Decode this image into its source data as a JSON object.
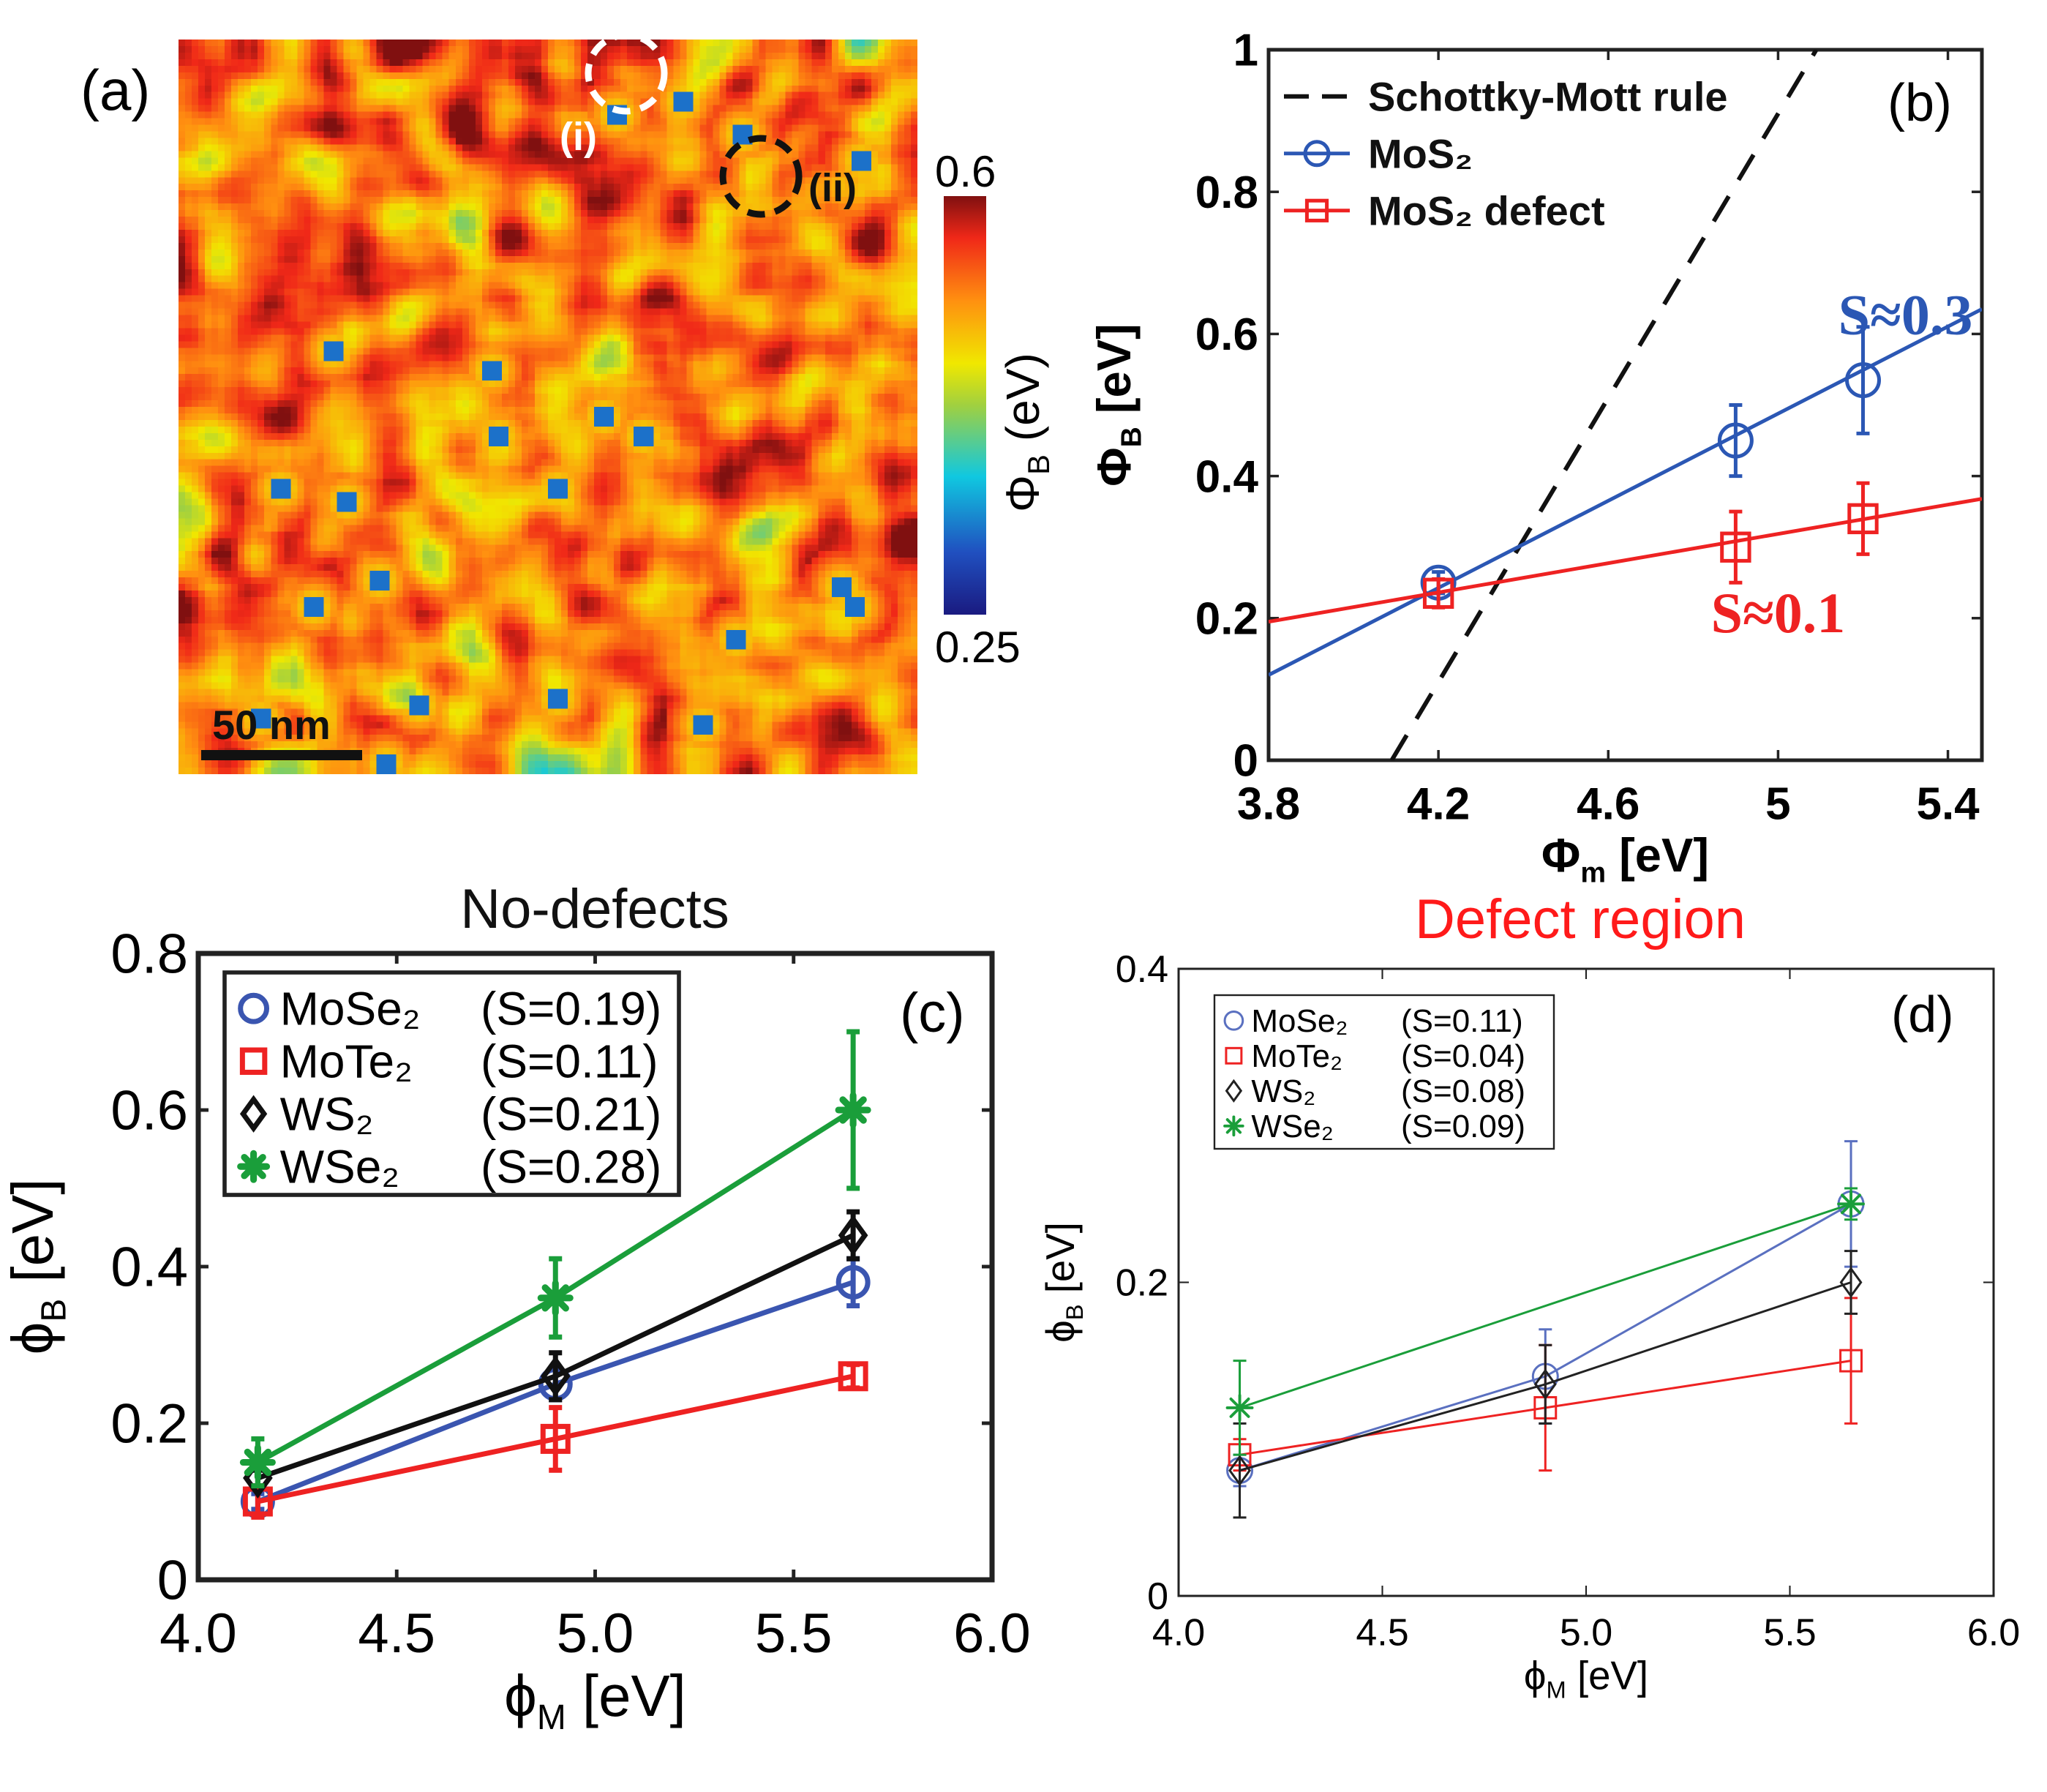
{
  "panel_a": {
    "label": "(a)",
    "scale_bar": "50 nm",
    "marker_i": "(i)",
    "marker_ii": "(ii)",
    "colorbar": {
      "max": "0.6",
      "min": "0.25",
      "label_symbol": "Φ",
      "label_sub": "B",
      "label_unit": " (eV)"
    },
    "colormap": "jet"
  },
  "chart_data": [
    {
      "id": "b",
      "type": "line",
      "panel_label": "(b)",
      "xlabel": {
        "symbol": "Φ",
        "sub": "m",
        "unit": " [eV]"
      },
      "ylabel": {
        "symbol": "Φ",
        "sub": "B",
        "unit": " [eV]"
      },
      "xlim": [
        3.8,
        5.48
      ],
      "ylim": [
        0,
        1
      ],
      "xticks": [
        "3.8",
        "4.2",
        "4.6",
        "5",
        "5.4"
      ],
      "yticks": [
        "0",
        "0.2",
        "0.4",
        "0.6",
        "0.8",
        "1"
      ],
      "legend": {
        "placement": "top-left",
        "entries": [
          {
            "label": "Schottky-Mott rule",
            "style": "dashed",
            "color": "#111111"
          },
          {
            "label": "MoS₂",
            "marker": "circle",
            "color": "#2b57b4"
          },
          {
            "label": "MoS₂ defect",
            "marker": "square",
            "color": "#ee2222"
          }
        ]
      },
      "reference_line": {
        "name": "Schottky-Mott rule",
        "x": [
          4.09,
          5.09
        ],
        "y": [
          0,
          1
        ],
        "color": "#111111"
      },
      "series": [
        {
          "name": "MoS₂",
          "color": "#2b57b4",
          "marker": "circle",
          "x": [
            4.2,
            4.9,
            5.2
          ],
          "y": [
            0.25,
            0.45,
            0.535
          ],
          "err": [
            0.015,
            0.05,
            0.075
          ],
          "fit": {
            "x": [
              3.8,
              5.48
            ],
            "y": [
              0.12,
              0.635
            ]
          }
        },
        {
          "name": "MoS₂ defect",
          "color": "#ee2222",
          "marker": "square",
          "x": [
            4.2,
            4.9,
            5.2
          ],
          "y": [
            0.235,
            0.3,
            0.34
          ],
          "err": [
            0.02,
            0.05,
            0.05
          ],
          "fit": {
            "x": [
              3.8,
              5.48
            ],
            "y": [
              0.195,
              0.368
            ]
          }
        }
      ],
      "annotations": [
        {
          "text": "S≈0.3",
          "x": 5.3,
          "y": 0.6,
          "color": "#2b57b4"
        },
        {
          "text": "S≈0.1",
          "x": 5.0,
          "y": 0.18,
          "color": "#ee2222"
        }
      ]
    },
    {
      "id": "c",
      "type": "line",
      "title": "No-defects",
      "panel_label": "(c)",
      "xlabel": {
        "symbol": "ϕ",
        "sub": "M",
        "unit": " [eV]"
      },
      "ylabel": {
        "symbol": "ϕ",
        "sub": "B",
        "unit": " [eV]"
      },
      "xlim": [
        4.0,
        6.0
      ],
      "ylim": [
        0,
        0.8
      ],
      "xticks": [
        "4.0",
        "4.5",
        "5.0",
        "5.5",
        "6.0"
      ],
      "yticks": [
        "0",
        "0.2",
        "0.4",
        "0.6",
        "0.8"
      ],
      "legend": {
        "placement": "top-left",
        "entries": [
          {
            "label": "MoSe₂",
            "s": "(S=0.19)",
            "marker": "circle",
            "color": "#3a55b0"
          },
          {
            "label": "MoTe₂",
            "s": "(S=0.11)",
            "marker": "square",
            "color": "#ee2222"
          },
          {
            "label": "WS₂",
            "s": "(S=0.21)",
            "marker": "diamond",
            "color": "#111111"
          },
          {
            "label": "WSe₂",
            "s": "(S=0.28)",
            "marker": "asterisk",
            "color": "#1a9e3a"
          }
        ]
      },
      "series": [
        {
          "name": "MoSe₂",
          "color": "#3a55b0",
          "marker": "circle",
          "x": [
            4.15,
            4.9,
            5.65
          ],
          "y": [
            0.1,
            0.25,
            0.38
          ],
          "err": [
            0.01,
            0.02,
            0.03
          ]
        },
        {
          "name": "MoTe₂",
          "color": "#ee2222",
          "marker": "square",
          "x": [
            4.15,
            4.9,
            5.65
          ],
          "y": [
            0.1,
            0.18,
            0.26
          ],
          "err": [
            0.02,
            0.04,
            0.015
          ]
        },
        {
          "name": "WS₂",
          "color": "#111111",
          "marker": "diamond",
          "x": [
            4.15,
            4.9,
            5.65
          ],
          "y": [
            0.13,
            0.26,
            0.44
          ],
          "err": [
            0.01,
            0.03,
            0.03
          ]
        },
        {
          "name": "WSe₂",
          "color": "#1a9e3a",
          "marker": "asterisk",
          "x": [
            4.15,
            4.9,
            5.65
          ],
          "y": [
            0.15,
            0.36,
            0.6
          ],
          "err": [
            0.03,
            0.05,
            0.1
          ]
        }
      ]
    },
    {
      "id": "d",
      "type": "line",
      "title": "Defect region",
      "panel_label": "(d)",
      "xlabel": {
        "symbol": "ϕ",
        "sub": "M",
        "unit": " [eV]"
      },
      "ylabel": {
        "symbol": "ϕ",
        "sub": "B",
        "unit": " [eV]"
      },
      "xlim": [
        4.0,
        6.0
      ],
      "ylim": [
        0,
        0.4
      ],
      "xticks": [
        "4.0",
        "4.5",
        "5.0",
        "5.5",
        "6.0"
      ],
      "yticks": [
        "0",
        "0.2",
        "0.4"
      ],
      "legend": {
        "placement": "top-left",
        "entries": [
          {
            "label": "MoSe₂",
            "s": "(S=0.11)",
            "marker": "circle",
            "color": "#5a70c0"
          },
          {
            "label": "MoTe₂",
            "s": "(S=0.04)",
            "marker": "square",
            "color": "#ee2222"
          },
          {
            "label": "WS₂",
            "s": "(S=0.08)",
            "marker": "diamond",
            "color": "#222222"
          },
          {
            "label": "WSe₂",
            "s": "(S=0.09)",
            "marker": "asterisk",
            "color": "#1a9e3a"
          }
        ]
      },
      "series": [
        {
          "name": "MoSe₂",
          "color": "#5a70c0",
          "marker": "circle",
          "x": [
            4.15,
            4.9,
            5.65
          ],
          "y": [
            0.08,
            0.14,
            0.25
          ],
          "err": [
            0.01,
            0.03,
            0.04
          ]
        },
        {
          "name": "MoTe₂",
          "color": "#ee2222",
          "marker": "square",
          "x": [
            4.15,
            4.9,
            5.65
          ],
          "y": [
            0.09,
            0.12,
            0.15
          ],
          "err": [
            0.01,
            0.04,
            0.04
          ]
        },
        {
          "name": "WS₂",
          "color": "#222222",
          "marker": "diamond",
          "x": [
            4.15,
            4.9,
            5.65
          ],
          "y": [
            0.08,
            0.135,
            0.2
          ],
          "err": [
            0.03,
            0.025,
            0.02
          ]
        },
        {
          "name": "WSe₂",
          "color": "#1a9e3a",
          "marker": "asterisk",
          "x": [
            4.15,
            5.65
          ],
          "y": [
            0.12,
            0.25
          ],
          "err": [
            0.03,
            0.01
          ]
        }
      ]
    }
  ]
}
